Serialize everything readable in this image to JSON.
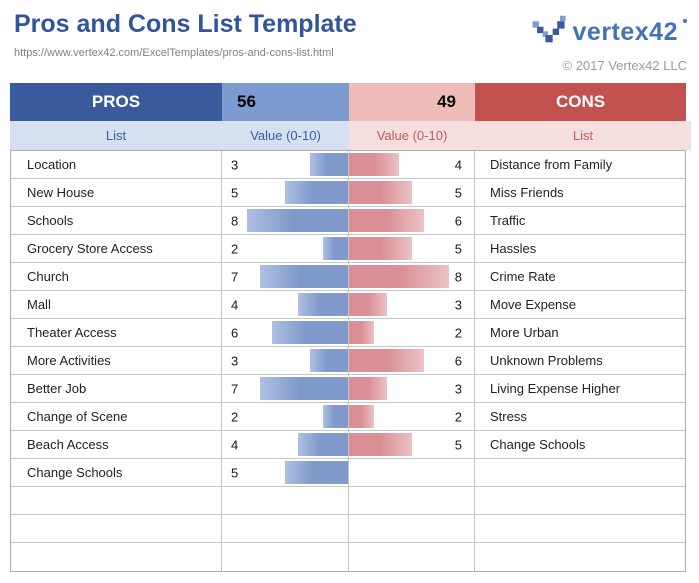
{
  "page": {
    "title": "Pros and Cons List Template",
    "url": "https://www.vertex42.com/ExcelTemplates/pros-and-cons-list.html",
    "logo_text": "vertex42",
    "copyright": "© 2017 Vertex42 LLC"
  },
  "table": {
    "pros_header": "PROS",
    "cons_header": "CONS",
    "pros_total": "56",
    "cons_total": "49",
    "pros_list_label": "List",
    "pros_value_label": "Value (0-10)",
    "cons_value_label": "Value (0-10)",
    "cons_list_label": "List",
    "max_value": 10,
    "rows": [
      {
        "pro": "Location",
        "pro_value": 3,
        "con_value": 4,
        "con": "Distance from Family"
      },
      {
        "pro": "New House",
        "pro_value": 5,
        "con_value": 5,
        "con": "Miss Friends"
      },
      {
        "pro": "Schools",
        "pro_value": 8,
        "con_value": 6,
        "con": "Traffic"
      },
      {
        "pro": "Grocery Store Access",
        "pro_value": 2,
        "con_value": 5,
        "con": "Hassles"
      },
      {
        "pro": "Church",
        "pro_value": 7,
        "con_value": 8,
        "con": "Crime Rate"
      },
      {
        "pro": "Mall",
        "pro_value": 4,
        "con_value": 3,
        "con": "Move Expense"
      },
      {
        "pro": "Theater Access",
        "pro_value": 6,
        "con_value": 2,
        "con": "More Urban"
      },
      {
        "pro": "More Activities",
        "pro_value": 3,
        "con_value": 6,
        "con": "Unknown Problems"
      },
      {
        "pro": "Better Job",
        "pro_value": 7,
        "con_value": 3,
        "con": "Living Expense Higher"
      },
      {
        "pro": "Change of Scene",
        "pro_value": 2,
        "con_value": 2,
        "con": "Stress"
      },
      {
        "pro": "Beach Access",
        "pro_value": 4,
        "con_value": 5,
        "con": "Change Schools"
      },
      {
        "pro": "Change Schools",
        "pro_value": 5,
        "con_value": null,
        "con": ""
      },
      {
        "pro": "",
        "pro_value": null,
        "con_value": null,
        "con": ""
      },
      {
        "pro": "",
        "pro_value": null,
        "con_value": null,
        "con": ""
      },
      {
        "pro": "",
        "pro_value": null,
        "con_value": null,
        "con": ""
      }
    ]
  },
  "colors": {
    "title_blue": "#30559C",
    "pros_header_bg": "#3B5A9D",
    "pros_total_bg": "#7E9BD1",
    "cons_total_bg": "#EFBCBA",
    "cons_header_bg": "#C25150",
    "sub_blue_bg": "#D7E0F1",
    "sub_blue_text": "#3D5C9F",
    "sub_pink_bg": "#F5DFDE",
    "sub_pink_text": "#C4595B",
    "pros_bar": "#7F99CB",
    "cons_bar": "#D98F95",
    "gridline": "#C6C6C6",
    "logo_blue": "#4273B4"
  },
  "chart_data": {
    "type": "bar",
    "title": "Pros and Cons List Template",
    "xlabel": "Value (0-10)",
    "xlim": [
      0,
      10
    ],
    "legend_position": "none",
    "grid": false,
    "series": [
      {
        "name": "Pros",
        "categories": [
          "Location",
          "New House",
          "Schools",
          "Grocery Store Access",
          "Church",
          "Mall",
          "Theater Access",
          "More Activities",
          "Better Job",
          "Change of Scene",
          "Beach Access",
          "Change Schools"
        ],
        "values": [
          3,
          5,
          8,
          2,
          7,
          4,
          6,
          3,
          7,
          2,
          4,
          5
        ],
        "total": 56,
        "color": "#7F99CB",
        "direction": "right-to-left"
      },
      {
        "name": "Cons",
        "categories": [
          "Distance from Family",
          "Miss Friends",
          "Traffic",
          "Hassles",
          "Crime Rate",
          "Move Expense",
          "More Urban",
          "Unknown Problems",
          "Living Expense Higher",
          "Stress",
          "Change Schools"
        ],
        "values": [
          4,
          5,
          6,
          5,
          8,
          3,
          2,
          6,
          3,
          2,
          5
        ],
        "total": 49,
        "color": "#D98F95",
        "direction": "left-to-right"
      }
    ]
  }
}
